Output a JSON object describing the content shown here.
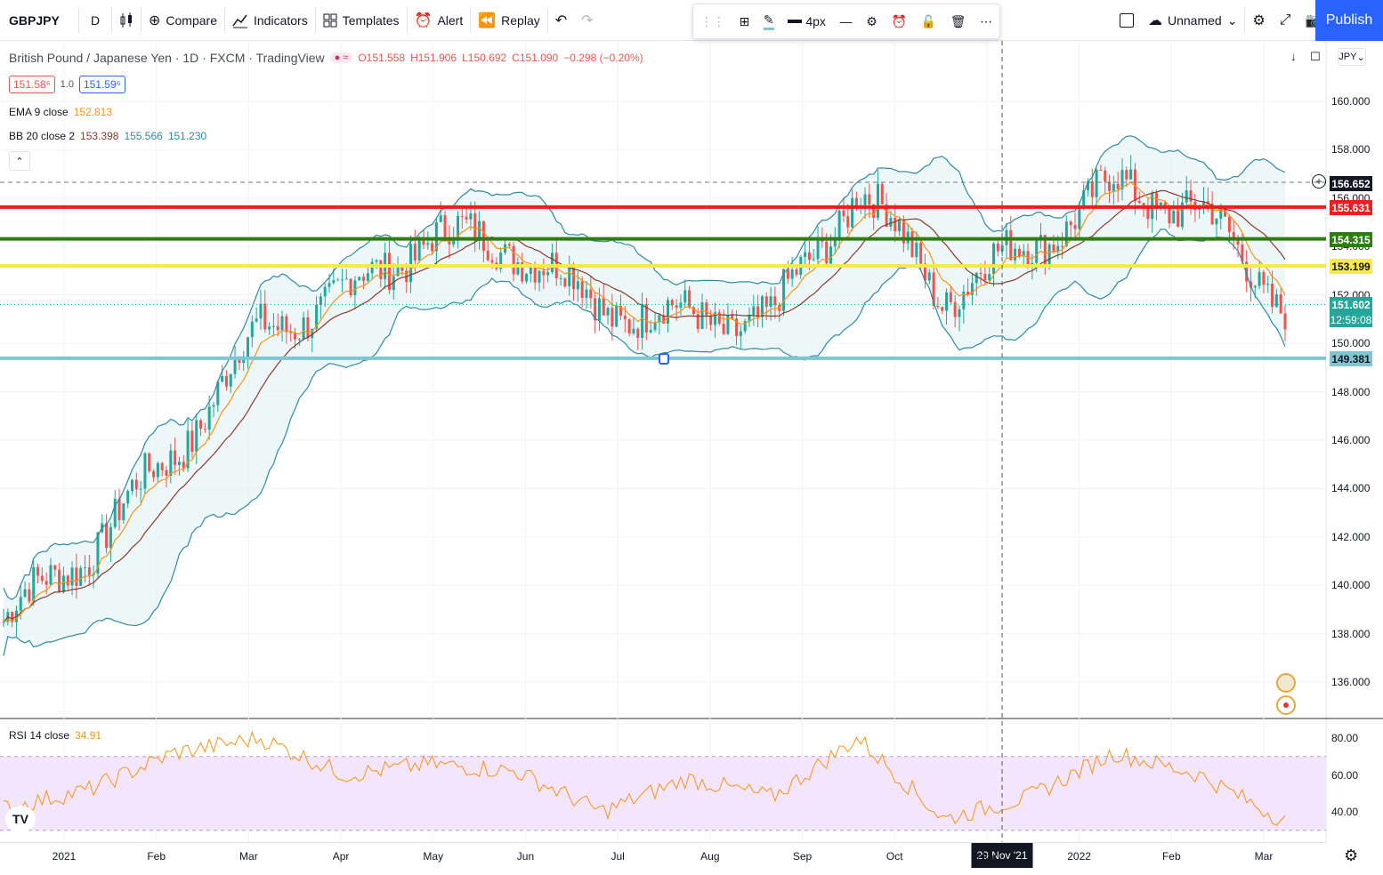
{
  "toolbar": {
    "symbol": "GBPJPY",
    "interval": "D",
    "compare": "Compare",
    "indicators": "Indicators",
    "templates": "Templates",
    "alert": "Alert",
    "replay": "Replay",
    "layout_name": "Unnamed",
    "publish": "Publish"
  },
  "drawbar": {
    "width_label": "4px"
  },
  "legend": {
    "title": "British Pound / Japanese Yen · 1D · FXCM · TradingView",
    "open": "O151.558",
    "high": "H151.906",
    "low": "L150.692",
    "close": "C151.090",
    "change": "−0.298 (−0.20%)",
    "sell_price": "151.58⁶",
    "spread": "1.0",
    "buy_price": "151.59⁶",
    "ema_label": "EMA 9 close",
    "ema_value": "152.813",
    "bb_label": "BB 20 close 2",
    "bb_basis": "153.398",
    "bb_upper": "155.566",
    "bb_lower": "151.230"
  },
  "rsi": {
    "label": "RSI 14 close",
    "value": "34.91"
  },
  "currency": "JPY",
  "price_axis": {
    "ticks": [
      "160.000",
      "158.000",
      "156.000",
      "154.000",
      "152.000",
      "150.000",
      "148.000",
      "146.000",
      "144.000",
      "142.000",
      "140.000",
      "138.000",
      "136.000"
    ],
    "rsi_ticks": [
      "80.00",
      "60.00",
      "40.00"
    ]
  },
  "price_tags": {
    "crosshair": "156.652",
    "red_line": "155.631",
    "green_line": "154.315",
    "yellow_line": "153.199",
    "last": "151.602",
    "countdown": "12:59:08",
    "cyan_line": "149.381"
  },
  "time_axis": {
    "labels": [
      "2021",
      "Feb",
      "Mar",
      "Apr",
      "May",
      "Jun",
      "Jul",
      "Aug",
      "Sep",
      "Oct",
      "Nov",
      "2022",
      "Feb",
      "Mar"
    ],
    "crosshair": "29 Nov '21"
  },
  "colors": {
    "up": "#26a69a",
    "down": "#ef5350",
    "ema": "#f7931a",
    "bb_band": "#2e8ba0",
    "bb_basis": "#8b3a2e",
    "red_line": "#f21c1c",
    "green_line": "#2e7d12",
    "yellow_line": "#f7e94a",
    "cyan_line": "#7fc6d1",
    "accent": "#2962ff"
  },
  "chart_data": {
    "type": "candlestick",
    "symbol": "GBPJPY",
    "ylim": [
      135,
      161
    ],
    "horizontal_levels": [
      155.631,
      154.315,
      153.199,
      149.381
    ],
    "x": [
      "2020-12",
      "2021-01",
      "2021-02",
      "2021-03",
      "2021-04",
      "2021-05",
      "2021-06",
      "2021-07",
      "2021-08",
      "2021-09",
      "2021-10",
      "2021-11",
      "2021-12",
      "2022-01",
      "2022-02",
      "2022-03"
    ],
    "close_path": [
      138.5,
      141.5,
      145.5,
      150.5,
      152.0,
      154.5,
      154.0,
      151.5,
      151.0,
      151.0,
      156.5,
      152.0,
      154.0,
      156.5,
      155.5,
      151.6
    ],
    "rsi_path": [
      42,
      52,
      72,
      80,
      60,
      66,
      62,
      40,
      58,
      48,
      80,
      36,
      48,
      72,
      60,
      34.91
    ],
    "rsi_ylim": [
      30,
      90
    ],
    "rsi_band": [
      30,
      70
    ]
  }
}
